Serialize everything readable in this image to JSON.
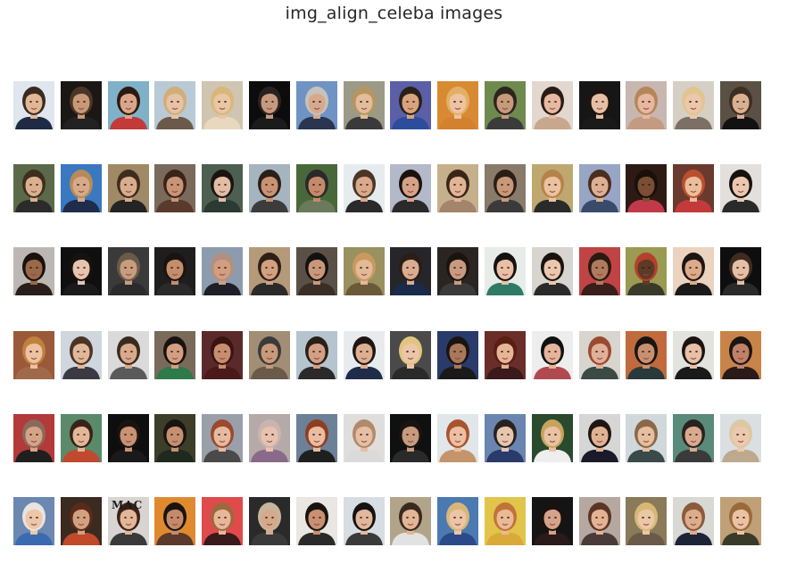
{
  "figure": {
    "title": "img_align_celeba images"
  },
  "grid": {
    "rows": 6,
    "cols": 16
  },
  "tiles": [
    {
      "bg": "#dfe6ee",
      "skin": "#e2b796",
      "hair": "#3b2a20",
      "shirt": "#1f2a44"
    },
    {
      "bg": "#1a1714",
      "skin": "#c89878",
      "hair": "#4a3626",
      "shirt": "#222222"
    },
    {
      "bg": "#7fb2c8",
      "skin": "#d9a68a",
      "hair": "#2b1a12",
      "shirt": "#c23a3a"
    },
    {
      "bg": "#b9c9d6",
      "skin": "#e6c3a6",
      "hair": "#cfae78",
      "shirt": "#6b5a4a"
    },
    {
      "bg": "#cfc5b0",
      "skin": "#e9c6a4",
      "hair": "#d9b77a",
      "shirt": "#e8d8c0"
    },
    {
      "bg": "#0c0c0c",
      "skin": "#c69a7e",
      "hair": "#2a2220",
      "shirt": "#1b1b1b"
    },
    {
      "bg": "#6f93c4",
      "skin": "#d6a98d",
      "hair": "#c7c2bb",
      "shirt": "#2a3550"
    },
    {
      "bg": "#9c9a86",
      "skin": "#e2bd9b",
      "hair": "#b8955f",
      "shirt": "#3a3a3a"
    },
    {
      "bg": "#5b5fa8",
      "skin": "#d7a47f",
      "hair": "#2a2018",
      "shirt": "#2c4c9c"
    },
    {
      "bg": "#d88a32",
      "skin": "#edc3a2",
      "hair": "#e2b064",
      "shirt": "#d3802f"
    },
    {
      "bg": "#6f8a4e",
      "skin": "#c69a7a",
      "hair": "#2d2520",
      "shirt": "#3b3b3b"
    },
    {
      "bg": "#e2d8cf",
      "skin": "#e6b9a0",
      "hair": "#2a1b14",
      "shirt": "#c7a88e"
    },
    {
      "bg": "#161616",
      "skin": "#e7bfa4",
      "hair": "#1c1410",
      "shirt": "#1a1a1a"
    },
    {
      "bg": "#c8b6b0",
      "skin": "#e7b7a0",
      "hair": "#b5865a",
      "shirt": "#c49a82"
    },
    {
      "bg": "#d5cfc6",
      "skin": "#ecc7aa",
      "hair": "#e0c58f",
      "shirt": "#7b6f66"
    },
    {
      "bg": "#5b5044",
      "skin": "#d9b092",
      "hair": "#3d2e22",
      "shirt": "#121212"
    },
    {
      "bg": "#5a6a48",
      "skin": "#dab08e",
      "hair": "#3e2e20",
      "shirt": "#2b2b2b"
    },
    {
      "bg": "#3a78c0",
      "skin": "#d8a989",
      "hair": "#b58b5a",
      "shirt": "#1d2d4a"
    },
    {
      "bg": "#a08a66",
      "skin": "#d9ac8c",
      "hair": "#3e2c1e",
      "shirt": "#242424"
    },
    {
      "bg": "#7a6a5c",
      "skin": "#c99475",
      "hair": "#3a2418",
      "shirt": "#5a3a2a"
    },
    {
      "bg": "#4c5f50",
      "skin": "#e2bca4",
      "hair": "#1a1411",
      "shirt": "#2b3a33"
    },
    {
      "bg": "#a6b4bf",
      "skin": "#c79373",
      "hair": "#2a2018",
      "shirt": "#3c3c3c"
    },
    {
      "bg": "#49683a",
      "skin": "#c48a6a",
      "hair": "#2a2a2a",
      "shirt": "#6a7a5a"
    },
    {
      "bg": "#e6ebee",
      "skin": "#d9a98a",
      "hair": "#4a3626",
      "shirt": "#2a2a2a"
    },
    {
      "bg": "#b3b9c8",
      "skin": "#d6a287",
      "hair": "#1b120e",
      "shirt": "#2a2a2a"
    },
    {
      "bg": "#c6b08c",
      "skin": "#e0b495",
      "hair": "#3a2618",
      "shirt": "#a4846a"
    },
    {
      "bg": "#8a7a6a",
      "skin": "#c89879",
      "hair": "#2a1e16",
      "shirt": "#3a3a3a"
    },
    {
      "bg": "#bfa870",
      "skin": "#ecc1a0",
      "hair": "#b5834a",
      "shirt": "#2a2a2a"
    },
    {
      "bg": "#98a5c4",
      "skin": "#ddb094",
      "hair": "#4a2e1e",
      "shirt": "#3a4a6a"
    },
    {
      "bg": "#2d1a14",
      "skin": "#7a4e34",
      "hair": "#1a0f0a",
      "shirt": "#c23a4a"
    },
    {
      "bg": "#6a3a2e",
      "skin": "#ebbd9a",
      "hair": "#b8502e",
      "shirt": "#c43a3a"
    },
    {
      "bg": "#e2dfdc",
      "skin": "#ecc7b0",
      "hair": "#161210",
      "shirt": "#2a2a2a"
    },
    {
      "bg": "#bcb7b2",
      "skin": "#9a684a",
      "hair": "#1a120e",
      "shirt": "#2a1e1a"
    },
    {
      "bg": "#0f0f0f",
      "skin": "#e7c4ae",
      "hair": "#161210",
      "shirt": "#1a1a1a"
    },
    {
      "bg": "#3a3a3a",
      "skin": "#c89c7e",
      "hair": "#6a5a4a",
      "shirt": "#2b2b2b"
    },
    {
      "bg": "#1e1e1e",
      "skin": "#c48e6c",
      "hair": "#1a1411",
      "shirt": "#2a2a2a"
    },
    {
      "bg": "#8c9cae",
      "skin": "#d39e80",
      "hair": "#b09080",
      "shirt": "#1f1f2a"
    },
    {
      "bg": "#b59a7a",
      "skin": "#d3a080",
      "hair": "#2e2018",
      "shirt": "#2a2a2a"
    },
    {
      "bg": "#5a5048",
      "skin": "#c9977a",
      "hair": "#141210",
      "shirt": "#3a2e26"
    },
    {
      "bg": "#9a9060",
      "skin": "#e3b998",
      "hair": "#c89a5e",
      "shirt": "#6a5a3a"
    },
    {
      "bg": "#26262a",
      "skin": "#dcac90",
      "hair": "#2a1e16",
      "shirt": "#1a2a4a"
    },
    {
      "bg": "#2a2422",
      "skin": "#c99a80",
      "hair": "#1a1411",
      "shirt": "#3a3a3a"
    },
    {
      "bg": "#e7ece8",
      "skin": "#e9c0a6",
      "hair": "#161210",
      "shirt": "#2f7a64"
    },
    {
      "bg": "#d8d4d0",
      "skin": "#ebc7b0",
      "hair": "#1a120e",
      "shirt": "#2a2a2a"
    },
    {
      "bg": "#c04444",
      "skin": "#b07a5c",
      "hair": "#2a1a12",
      "shirt": "#3a1e1a"
    },
    {
      "bg": "#9a9a52",
      "skin": "#5e3a26",
      "hair": "#b5402e",
      "shirt": "#3a3a2a"
    },
    {
      "bg": "#ebd3bf",
      "skin": "#dcab8a",
      "hair": "#1e1612",
      "shirt": "#1a1a1a"
    },
    {
      "bg": "#0e0e0e",
      "skin": "#e5bfa6",
      "hair": "#3e2c20",
      "shirt": "#2a2a2a"
    },
    {
      "bg": "#9a5a3a",
      "skin": "#ecc2a2",
      "hair": "#c0803e",
      "shirt": "#a06a4a"
    },
    {
      "bg": "#cfd6dd",
      "skin": "#e0b899",
      "hair": "#4a3424",
      "shirt": "#3a3a44"
    },
    {
      "bg": "#dadada",
      "skin": "#d8aa8c",
      "hair": "#3a2a1e",
      "shirt": "#5a5a5a"
    },
    {
      "bg": "#7a6a5a",
      "skin": "#d39f82",
      "hair": "#1a120e",
      "shirt": "#2f7a4a"
    },
    {
      "bg": "#5a2a2a",
      "skin": "#c68e6e",
      "hair": "#3a1410",
      "shirt": "#4a1a1a"
    },
    {
      "bg": "#a28e74",
      "skin": "#c99a7a",
      "hair": "#3a3a3a",
      "shirt": "#6a5a4a"
    },
    {
      "bg": "#b6c4d0",
      "skin": "#d3a084",
      "hair": "#2a2018",
      "shirt": "#2a2a2a"
    },
    {
      "bg": "#e8ebee",
      "skin": "#deb093",
      "hair": "#1e1612",
      "shirt": "#1f2d4a"
    },
    {
      "bg": "#4a4a4a",
      "skin": "#ecc6a8",
      "hair": "#e2c47e",
      "shirt": "#2a2a2a"
    },
    {
      "bg": "#2a3a6a",
      "skin": "#a97858",
      "hair": "#1a1411",
      "shirt": "#1a1a1a"
    },
    {
      "bg": "#6a2e2a",
      "skin": "#e6b595",
      "hair": "#5a1e14",
      "shirt": "#3a1a1a"
    },
    {
      "bg": "#ededed",
      "skin": "#e5b49a",
      "hair": "#111111",
      "shirt": "#b04a50"
    },
    {
      "bg": "#d8d4ce",
      "skin": "#e1b099",
      "hair": "#9a4a30",
      "shirt": "#3a4a44"
    },
    {
      "bg": "#c06a3e",
      "skin": "#c79070",
      "hair": "#1a1411",
      "shirt": "#2a3a3a"
    },
    {
      "bg": "#e2e2de",
      "skin": "#e8c0a6",
      "hair": "#1a1411",
      "shirt": "#1a1a1a"
    },
    {
      "bg": "#c88448",
      "skin": "#c0806a",
      "hair": "#1e1410",
      "shirt": "#2a1a1a"
    },
    {
      "bg": "#b23a3a",
      "skin": "#d5a488",
      "hair": "#8a6a5a",
      "shirt": "#1f1f1f"
    },
    {
      "bg": "#5a8a6a",
      "skin": "#e4b698",
      "hair": "#3a2218",
      "shirt": "#c04a30"
    },
    {
      "bg": "#0e0e0e",
      "skin": "#c89273",
      "hair": "#1a1411",
      "shirt": "#1a1a1a"
    },
    {
      "bg": "#3c3e2a",
      "skin": "#c59070",
      "hair": "#1a1411",
      "shirt": "#1e2a1e"
    },
    {
      "bg": "#9aa0aa",
      "skin": "#e6ba9e",
      "hair": "#9a4a2e",
      "shirt": "#4a4a4a"
    },
    {
      "bg": "#b4aaa8",
      "skin": "#e8c2ae",
      "hair": "#c9b4b0",
      "shirt": "#8a6a8a"
    },
    {
      "bg": "#6c8098",
      "skin": "#eabca0",
      "hair": "#8e3e22",
      "shirt": "#1f1f1f"
    },
    {
      "bg": "#e0dedc",
      "skin": "#e7bea4",
      "hair": "#b08a6a",
      "shirt": "#dadada"
    },
    {
      "bg": "#0f1010",
      "skin": "#c89a7e",
      "hair": "#1a1411",
      "shirt": "#2a2a2a"
    },
    {
      "bg": "#e0e6ea",
      "skin": "#ecbfa3",
      "hair": "#a8542e",
      "shirt": "#c4946a"
    },
    {
      "bg": "#6a86b0",
      "skin": "#e7c6b0",
      "hair": "#2a2220",
      "shirt": "#2a3a6a"
    },
    {
      "bg": "#2a4a2e",
      "skin": "#e8c2a4",
      "hair": "#c8a25e",
      "shirt": "#eeeeee"
    },
    {
      "bg": "#d6d6d6",
      "skin": "#e0b292",
      "hair": "#1e1612",
      "shirt": "#1a1a2a"
    },
    {
      "bg": "#d0d8dc",
      "skin": "#e6bea0",
      "hair": "#8a6848",
      "shirt": "#3a4a4a"
    },
    {
      "bg": "#5a8a7a",
      "skin": "#d9aa8e",
      "hair": "#2a2220",
      "shirt": "#3a3a3a"
    },
    {
      "bg": "#dadfe2",
      "skin": "#ecc9ae",
      "hair": "#dcc8a4",
      "shirt": "#bca98e"
    },
    {
      "bg": "#6a88b0",
      "skin": "#ecc7a8",
      "hair": "#e8e4de",
      "shirt": "#3a6ab0"
    },
    {
      "bg": "#3a2a20",
      "skin": "#d3a080",
      "hair": "#5a2a1a",
      "shirt": "#c04a2a"
    },
    {
      "bg": "#d8d4d2",
      "skin": "#e3b698",
      "hair": "#3a2218",
      "shirt": "#3a3a3a"
    },
    {
      "bg": "#e08a30",
      "skin": "#c68a6a",
      "hair": "#1a1411",
      "shirt": "#5a3a2a"
    },
    {
      "bg": "#e04a4a",
      "skin": "#e8b79a",
      "hair": "#9a6a3e",
      "shirt": "#3a1a1a"
    },
    {
      "bg": "#2a2a2a",
      "skin": "#d6a98c",
      "hair": "#c7b59a",
      "shirt": "#3a3a3a"
    },
    {
      "bg": "#eae6e2",
      "skin": "#c99072",
      "hair": "#1a1411",
      "shirt": "#2a2a2a"
    },
    {
      "bg": "#d7dde2",
      "skin": "#e2b89c",
      "hair": "#161210",
      "shirt": "#3a3a3a"
    },
    {
      "bg": "#b2a48a",
      "skin": "#e3b697",
      "hair": "#3a2a1e",
      "shirt": "#e2e2e2"
    },
    {
      "bg": "#4a7ab0",
      "skin": "#ecc4a6",
      "hair": "#d8b67a",
      "shirt": "#2a4a8a"
    },
    {
      "bg": "#e2c44a",
      "skin": "#eab995",
      "hair": "#c0743a",
      "shirt": "#d9aa3a"
    },
    {
      "bg": "#141414",
      "skin": "#d6a28a",
      "hair": "#1a120e",
      "shirt": "#2a1a1a"
    },
    {
      "bg": "#b6a8a0",
      "skin": "#e4b394",
      "hair": "#5a3626",
      "shirt": "#4a3a3a"
    },
    {
      "bg": "#8a7a5a",
      "skin": "#ecc7a5",
      "hair": "#d8b876",
      "shirt": "#6a5a4a"
    },
    {
      "bg": "#d8d8d4",
      "skin": "#dcac8c",
      "hair": "#8a5a3a",
      "shirt": "#1e2438"
    },
    {
      "bg": "#c0a076",
      "skin": "#eac3a4",
      "hair": "#9a6a3a",
      "shirt": "#3a3a2a"
    }
  ],
  "overlay_text": "MAC"
}
